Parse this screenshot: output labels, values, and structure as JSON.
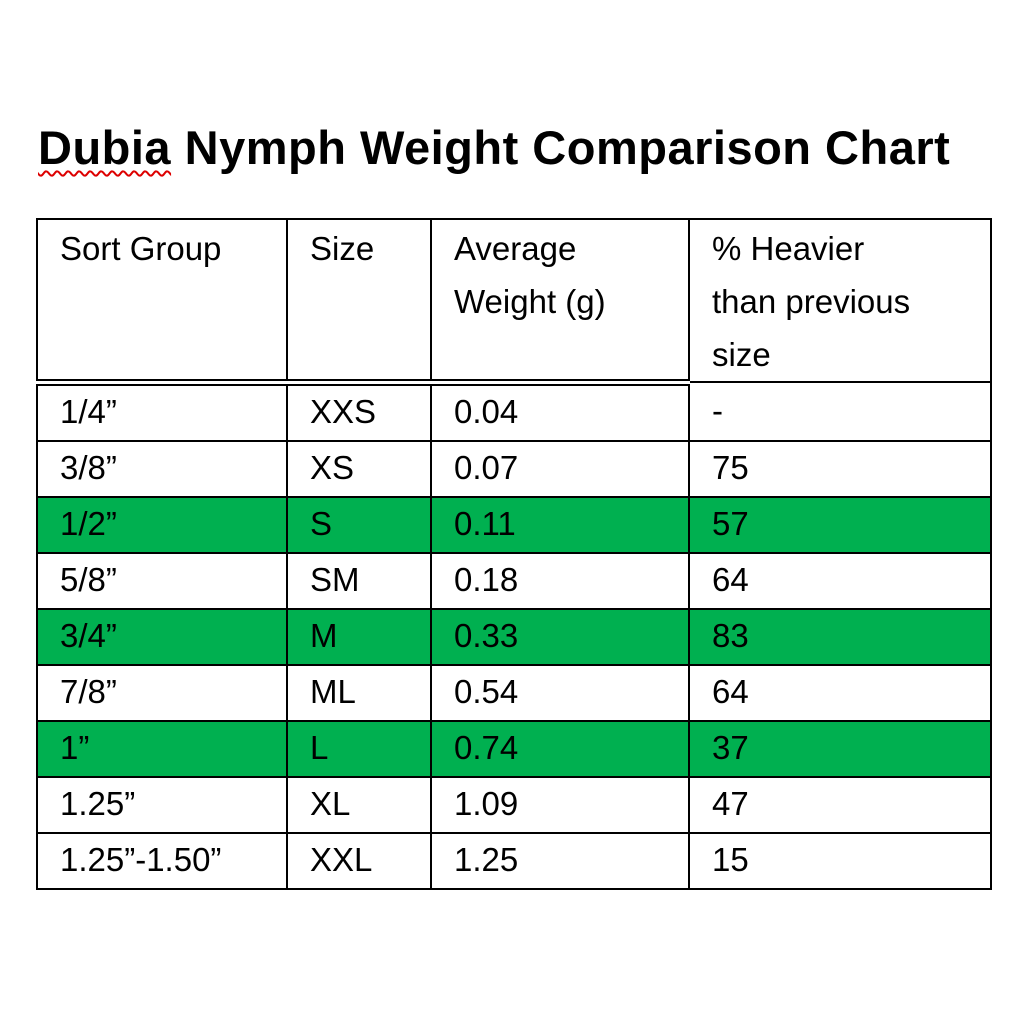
{
  "title": {
    "misspelled_word": "Dubia",
    "rest": " Nymph Weight Comparison Chart",
    "full": "Dubia Nymph Weight Comparison Chart",
    "squiggle_color": "#dd0000"
  },
  "colors": {
    "background": "#ffffff",
    "text": "#000000",
    "border": "#000000",
    "highlight_green": "#00B050"
  },
  "table": {
    "header_keys": [
      "sort_group",
      "size",
      "avg_weight",
      "pct_heavier"
    ],
    "headers": [
      "Sort Group",
      "Size",
      "Average Weight (g)",
      "% Heavier than previous size"
    ],
    "rows": [
      {
        "sort_group": "1/4”",
        "size": "XXS",
        "avg_weight": "0.04",
        "pct_heavier": "-",
        "highlighted": false
      },
      {
        "sort_group": "3/8”",
        "size": "XS",
        "avg_weight": "0.07",
        "pct_heavier": "75",
        "highlighted": false
      },
      {
        "sort_group": "1/2”",
        "size": "S",
        "avg_weight": "0.11",
        "pct_heavier": "57",
        "highlighted": true
      },
      {
        "sort_group": "5/8”",
        "size": "SM",
        "avg_weight": "0.18",
        "pct_heavier": "64",
        "highlighted": false
      },
      {
        "sort_group": "3/4”",
        "size": "M",
        "avg_weight": "0.33",
        "pct_heavier": "83",
        "highlighted": true
      },
      {
        "sort_group": "7/8”",
        "size": "ML",
        "avg_weight": "0.54",
        "pct_heavier": "64",
        "highlighted": false
      },
      {
        "sort_group": "1”",
        "size": "L",
        "avg_weight": "0.74",
        "pct_heavier": "37",
        "highlighted": true
      },
      {
        "sort_group": "1.25”",
        "size": "XL",
        "avg_weight": "1.09",
        "pct_heavier": "47",
        "highlighted": false
      },
      {
        "sort_group": "1.25”-1.50”",
        "size": "XXL",
        "avg_weight": "1.25",
        "pct_heavier": "15",
        "highlighted": false
      }
    ]
  },
  "chart_data": {
    "type": "table",
    "title": "Dubia Nymph Weight Comparison Chart",
    "columns": [
      "Sort Group",
      "Size",
      "Average Weight (g)",
      "% Heavier than previous size"
    ],
    "rows": [
      [
        "1/4”",
        "XXS",
        0.04,
        null
      ],
      [
        "3/8”",
        "XS",
        0.07,
        75
      ],
      [
        "1/2”",
        "S",
        0.11,
        57
      ],
      [
        "5/8”",
        "SM",
        0.18,
        64
      ],
      [
        "3/4”",
        "M",
        0.33,
        83
      ],
      [
        "7/8”",
        "ML",
        0.54,
        64
      ],
      [
        "1”",
        "L",
        0.74,
        37
      ],
      [
        "1.25”",
        "XL",
        1.09,
        47
      ],
      [
        "1.25”-1.50”",
        "XXL",
        1.25,
        15
      ]
    ],
    "highlighted_rows": [
      "1/2”",
      "3/4”",
      "1”"
    ]
  }
}
